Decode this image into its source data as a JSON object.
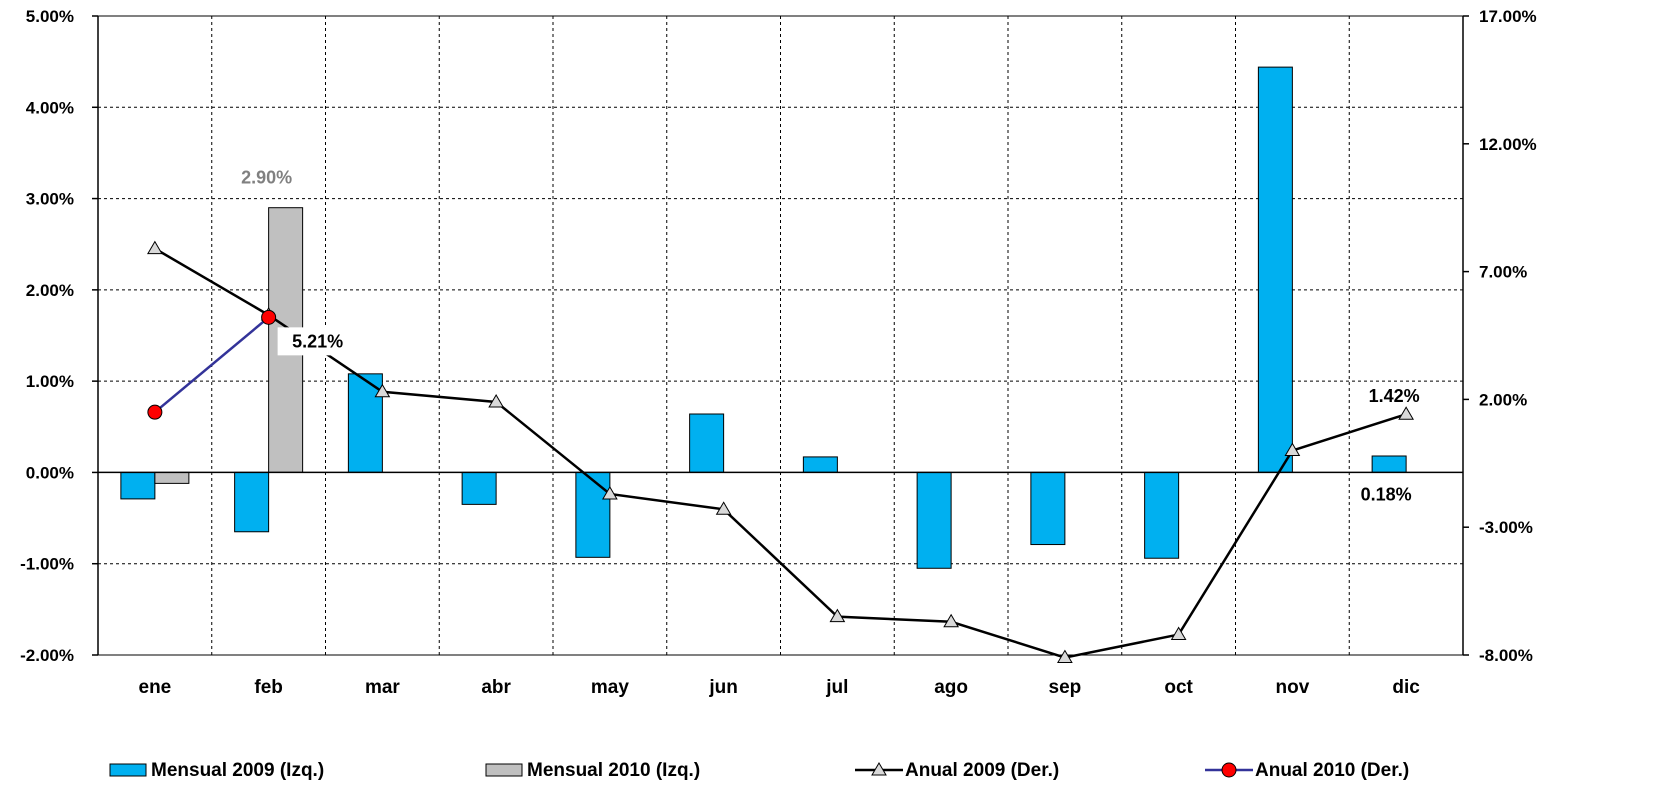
{
  "chart_data": {
    "type": "bar",
    "categories": [
      "ene",
      "feb",
      "mar",
      "abr",
      "may",
      "jun",
      "jul",
      "ago",
      "sep",
      "oct",
      "nov",
      "dic"
    ],
    "y_left": {
      "range": [
        -2.0,
        5.0
      ],
      "ticks": [
        -2,
        -1,
        0,
        1,
        2,
        3,
        4,
        5
      ],
      "tick_labels": [
        "-2.00%",
        "-1.00%",
        "0.00%",
        "1.00%",
        "2.00%",
        "3.00%",
        "4.00%",
        "5.00%"
      ]
    },
    "y_right": {
      "range": [
        -8.0,
        17.0
      ],
      "ticks": [
        -8,
        -3,
        2,
        7,
        12,
        17
      ],
      "tick_labels": [
        "-8.00%",
        "-3.00%",
        "2.00%",
        "7.00%",
        "12.00%",
        "17.00%"
      ]
    },
    "grid": true,
    "legend_position": "bottom",
    "series": [
      {
        "name": "Mensual 2009 (Izq.)",
        "kind": "bar",
        "axis": "left",
        "color": "#00B0F0",
        "values": [
          -0.29,
          -0.65,
          1.08,
          -0.35,
          -0.93,
          0.64,
          0.17,
          -1.05,
          -0.79,
          -0.94,
          4.44,
          0.18
        ]
      },
      {
        "name": "Mensual 2010 (Izq.)",
        "kind": "bar",
        "axis": "left",
        "color": "#C0C0C0",
        "values": [
          -0.12,
          2.9,
          null,
          null,
          null,
          null,
          null,
          null,
          null,
          null,
          null,
          null
        ]
      },
      {
        "name": "Anual 2009 (Der.)",
        "kind": "line",
        "axis": "right",
        "color": "#000000",
        "marker": "triangle",
        "values": [
          7.9,
          5.3,
          2.3,
          1.9,
          -1.7,
          -2.3,
          -6.5,
          -6.7,
          -8.1,
          -7.2,
          0.0,
          1.42
        ]
      },
      {
        "name": "Anual 2010 (Der.)",
        "kind": "line",
        "axis": "right",
        "color": "#333399",
        "marker": "circle",
        "marker_color": "#FF0000",
        "values": [
          1.5,
          5.21,
          null,
          null,
          null,
          null,
          null,
          null,
          null,
          null,
          null,
          null
        ]
      }
    ],
    "data_labels": [
      {
        "text": "2.90%",
        "series": 1,
        "index": 1,
        "color": "#808080"
      },
      {
        "text": "5.21%",
        "series": 3,
        "index": 1,
        "color": "#000000",
        "boxed": true
      },
      {
        "text": "0.18%",
        "series": 0,
        "index": 11,
        "color": "#000000"
      },
      {
        "text": "1.42%",
        "series": 2,
        "index": 11,
        "color": "#000000"
      }
    ]
  }
}
